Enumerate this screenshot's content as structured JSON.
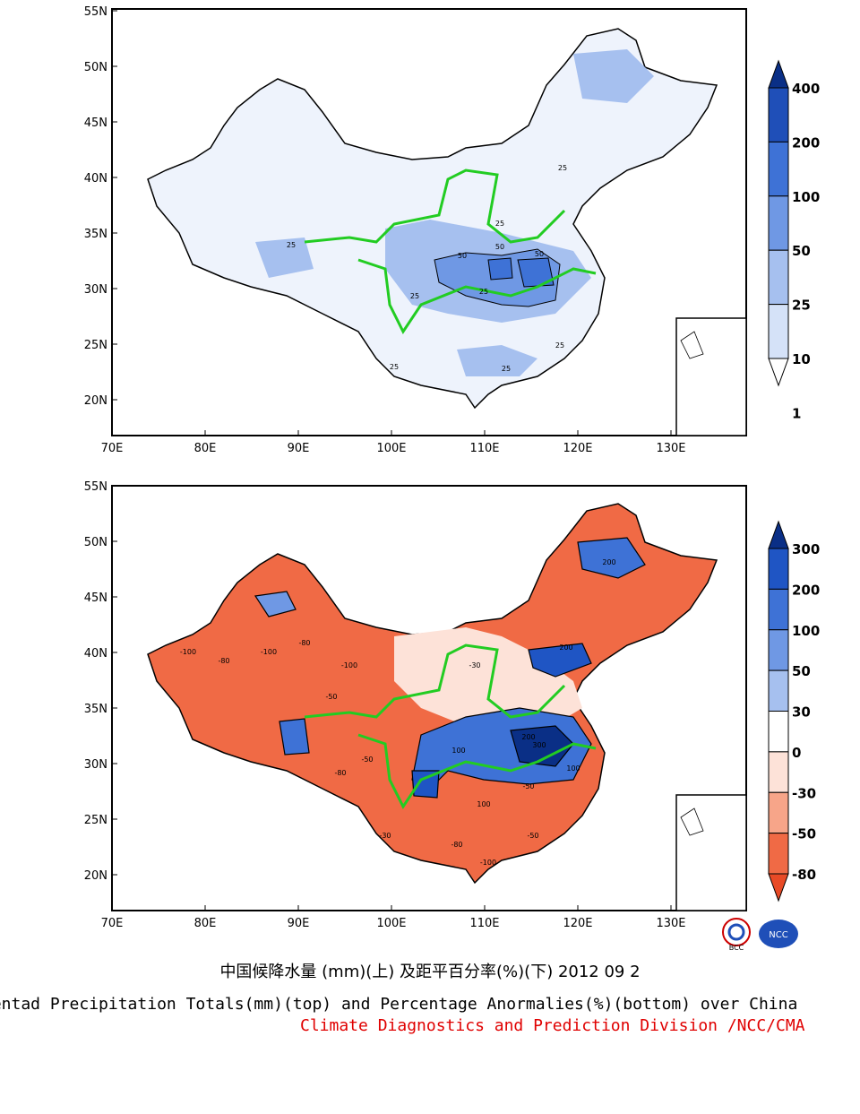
{
  "top_panel": {
    "title": "Pentad precipitation totals (mm)",
    "lat_ticks": [
      "55N",
      "50N",
      "45N",
      "40N",
      "35N",
      "30N",
      "25N",
      "20N"
    ],
    "lon_ticks": [
      "70E",
      "80E",
      "90E",
      "100E",
      "110E",
      "120E",
      "130E"
    ],
    "colorbar": {
      "labels": [
        "400",
        "200",
        "100",
        "50",
        "25",
        "10",
        "1"
      ],
      "colors": [
        "#0a2f86",
        "#1f4fb8",
        "#3e72d6",
        "#6f98e4",
        "#a6c0ef",
        "#d5e2f8",
        "#ffffff"
      ]
    },
    "contour_labels": [
      "25",
      "25",
      "25",
      "25",
      "25",
      "25",
      "50",
      "50",
      "50",
      "25",
      "25"
    ]
  },
  "bottom_panel": {
    "title": "Pentad precipitation percentage anomalies (%)",
    "lat_ticks": [
      "55N",
      "50N",
      "45N",
      "40N",
      "35N",
      "30N",
      "25N",
      "20N"
    ],
    "lon_ticks": [
      "70E",
      "80E",
      "90E",
      "100E",
      "110E",
      "120E",
      "130E"
    ],
    "colorbar": {
      "labels": [
        "300",
        "200",
        "100",
        "50",
        "30",
        "0",
        "-30",
        "-50",
        "-80"
      ],
      "colors": [
        "#0a2f86",
        "#1f55c4",
        "#3e72d6",
        "#6f98e4",
        "#a6c0ef",
        "#ffffff",
        "#fde2d8",
        "#f7a589",
        "#f06a45",
        "#e84a26"
      ]
    },
    "contour_labels": [
      "-100",
      "-80",
      "-100",
      "-80",
      "-100",
      "-50",
      "100",
      "200",
      "300",
      "100",
      "200",
      "-50",
      "-80",
      "-50",
      "-30",
      "100",
      "200",
      "-100",
      "-80",
      "-50",
      "-30"
    ]
  },
  "captions": {
    "chinese": "中国候降水量 (mm)(上) 及距平百分率(%)(下) 2012 09 2",
    "english": "Pentad Precipitation Totals(mm)(top) and Percentage Anormalies(%)(bottom) over China",
    "division": "Climate Diagnostics and Prediction Division /NCC/CMA"
  },
  "logos": [
    "BCC",
    "NCC"
  ],
  "colors": {
    "river": "#22cc22",
    "division_text": "#e00000"
  }
}
